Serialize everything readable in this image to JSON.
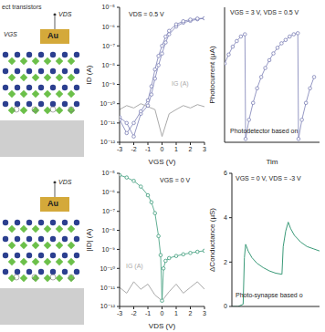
{
  "diagram": {
    "top": {
      "title": "ect transistors",
      "electrode": "Au",
      "labels": [
        "VDS",
        "VGS"
      ]
    },
    "bottom": {
      "electrode": "Au",
      "labels": [
        "VDS"
      ]
    }
  },
  "chart_data": [
    {
      "type": "line",
      "xlabel": "VGS (V)",
      "ylabel": "ID (A)",
      "annotations": [
        "VDS = 0.5 V"
      ],
      "log": "y",
      "xlim": [
        -3,
        3
      ],
      "xticks": [
        -3,
        -2,
        -1,
        0,
        1,
        2,
        3
      ],
      "ylim": [
        1e-12,
        1e-05
      ],
      "yticks": [
        {
          "value": 1e-12,
          "label": "10⁻¹²"
        },
        {
          "value": 1e-11,
          "label": "10⁻¹¹"
        },
        {
          "value": 1e-10,
          "label": "10⁻¹⁰"
        },
        {
          "value": 1e-09,
          "label": "10⁻⁹"
        },
        {
          "value": 1e-08,
          "label": "10⁻⁸"
        },
        {
          "value": 1e-07,
          "label": "10⁻⁷"
        },
        {
          "value": 1e-06,
          "label": "10⁻⁶"
        },
        {
          "value": 1e-05,
          "label": "10⁻⁵"
        }
      ],
      "grid": false,
      "series": [
        {
          "color": "#7b7fb5",
          "marker": "circle",
          "line_style": "solid",
          "x": [
            -3,
            -2.5,
            -2,
            -1.5,
            -1,
            -0.75,
            -0.5,
            -0.25,
            0,
            0.25,
            0.5,
            1,
            1.5,
            2,
            2.5,
            3,
            2.5,
            2,
            1.5,
            1,
            0.5,
            0.25,
            0,
            -0.25,
            -0.5,
            -0.75,
            -1,
            -1.5,
            -2,
            -2.5,
            -3
          ],
          "values": [
            2e-11,
            1e-11,
            2e-12,
            3e-11,
            8e-11,
            3e-10,
            2e-09,
            1e-08,
            4e-08,
            1.5e-07,
            4e-07,
            1e-06,
            1.6e-06,
            2e-06,
            2.4e-06,
            2.7e-06,
            2.6e-06,
            2.3e-06,
            1.9e-06,
            1.3e-06,
            6e-07,
            3e-07,
            1e-07,
            3e-08,
            6e-09,
            8e-10,
            1.5e-10,
            4e-11,
            1e-11,
            3e-12,
            1.5e-11
          ]
        },
        {
          "name": "IG (A)",
          "color": "#aaaaaa",
          "marker": "none",
          "line_style": "solid",
          "x": [
            -3,
            -2.5,
            -2,
            -1.5,
            -1,
            -0.5,
            0,
            0.5,
            1,
            1.5,
            2,
            2.5,
            3
          ],
          "values": [
            5e-11,
            8e-11,
            6e-11,
            1e-10,
            7e-11,
            5e-11,
            2e-12,
            3e-11,
            5e-11,
            8e-11,
            6e-11,
            9e-11,
            7e-11
          ]
        }
      ]
    },
    {
      "type": "line",
      "xlabel": "Tim",
      "ylabel": "Photocurrent (µA)",
      "annotations": [
        "VGS = 3 V, VDS = 0.5 V",
        "Photodetector based on"
      ],
      "xlim": [
        0,
        7
      ],
      "ylim": [
        0,
        12
      ],
      "tick_labels": false,
      "grid": false,
      "series": [
        {
          "color": "#7b7fb5",
          "marker": "circle",
          "line_style": "solid",
          "x": [
            0,
            0.3,
            0.6,
            0.9,
            1.2,
            1.5,
            1.55,
            1.8,
            2.1,
            2.4,
            2.7,
            3,
            3.3,
            3.6,
            3.9,
            4.2,
            4.5,
            4.8,
            5.1,
            5.4,
            5.45,
            5.7,
            6,
            6.3,
            6.6
          ],
          "values": [
            7,
            7.8,
            8.5,
            9,
            9.4,
            9.6,
            0.3,
            2,
            3.5,
            4.8,
            5.8,
            6.6,
            7.3,
            7.9,
            8.4,
            8.8,
            9.1,
            9.4,
            9.6,
            9.7,
            0.3,
            2,
            3.5,
            4.8,
            5.8
          ]
        }
      ]
    },
    {
      "type": "line",
      "xlabel": "VDS (V)",
      "ylabel": "|ID| (A)",
      "annotations": [
        "VGS = 0 V"
      ],
      "log": "y",
      "xlim": [
        -3,
        3
      ],
      "xticks": [
        -3,
        -2,
        -1,
        0,
        1,
        2,
        3
      ],
      "ylim": [
        1e-12,
        1e-05
      ],
      "yticks": [
        {
          "value": 1e-12,
          "label": "10⁻¹²"
        },
        {
          "value": 1e-11,
          "label": "10⁻¹¹"
        },
        {
          "value": 1e-10,
          "label": "10⁻¹⁰"
        },
        {
          "value": 1e-09,
          "label": "10⁻⁹"
        },
        {
          "value": 1e-08,
          "label": "10⁻⁸"
        },
        {
          "value": 1e-07,
          "label": "10⁻⁷"
        },
        {
          "value": 1e-06,
          "label": "10⁻⁶"
        },
        {
          "value": 1e-05,
          "label": "10⁻⁵"
        }
      ],
      "grid": false,
      "series": [
        {
          "color": "#3a9a78",
          "marker": "circle",
          "line_style": "solid",
          "x": [
            -3,
            -2.5,
            -2,
            -1.5,
            -1,
            -0.75,
            -0.5,
            -0.25,
            -0.1,
            0,
            0.1,
            0.25,
            0.5,
            1,
            1.5,
            2,
            2.5,
            3
          ],
          "values": [
            8e-06,
            6e-06,
            4e-06,
            2e-06,
            7e-07,
            3e-07,
            8e-08,
            5e-09,
            5e-10,
            2e-12,
            1e-10,
            2.5e-10,
            3.5e-10,
            4.5e-10,
            5.5e-10,
            6.5e-10,
            7.5e-10,
            8.5e-10
          ]
        },
        {
          "name": "IG (A)",
          "color": "#aaaaaa",
          "marker": "none",
          "line_style": "solid",
          "x": [
            -3,
            -2.5,
            -2,
            -1.5,
            -1,
            -0.5,
            0,
            0.5,
            1,
            1.5,
            2,
            2.5,
            3
          ],
          "values": [
            1e-11,
            5e-12,
            2e-11,
            8e-12,
            1.5e-11,
            4e-12,
            2e-12,
            6e-12,
            1.5e-11,
            5e-12,
            1e-11,
            2e-11,
            8e-12
          ]
        }
      ]
    },
    {
      "type": "line",
      "ylabel": "ΔConductance (µS)",
      "annotations": [
        "VGS = 0 V, VDS = -3 V",
        "Photo-synapse based o"
      ],
      "xlim": [
        0,
        7
      ],
      "ylim": [
        0,
        6
      ],
      "yticks": [
        0,
        2,
        4,
        6
      ],
      "tick_labels": "y",
      "grid": false,
      "series": [
        {
          "color": "#3a9a78",
          "marker": "none",
          "line_style": "solid",
          "x": [
            0,
            0.5,
            0.9,
            1,
            1.1,
            1.3,
            1.6,
            2,
            2.5,
            3,
            3.5,
            4,
            4.1,
            4.3,
            4.5,
            4.7,
            5,
            5.5,
            6,
            6.5,
            7
          ],
          "values": [
            0,
            0,
            0.1,
            2.2,
            2.8,
            2.5,
            2.2,
            1.95,
            1.75,
            1.6,
            1.5,
            1.45,
            2.7,
            3.4,
            3.8,
            3.5,
            3.2,
            2.9,
            2.7,
            2.6,
            2.5
          ]
        }
      ]
    }
  ]
}
